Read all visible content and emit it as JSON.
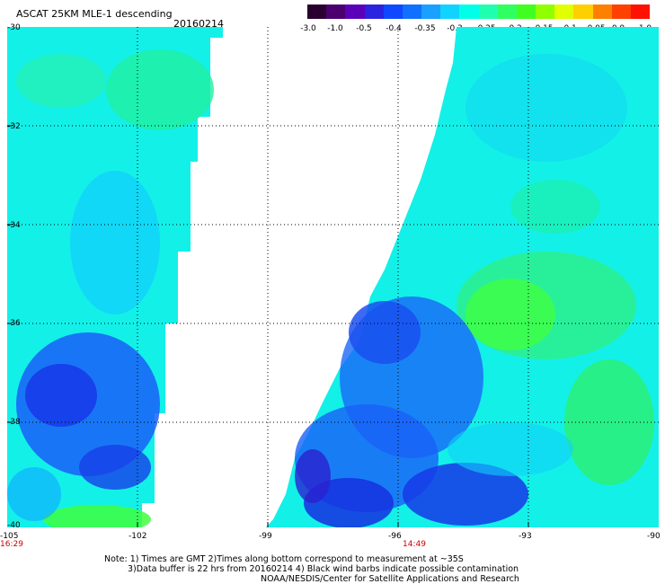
{
  "title": "ASCAT 25KM MLE-1 descending",
  "date": "20160214",
  "colorbar": {
    "labels": [
      "-3.0",
      "-1.0",
      "-0.5",
      "-0.4",
      "-0.35",
      "-0.3",
      "-0.25",
      "-0.2",
      "-0.15",
      "-0.1",
      "-0.05",
      "0.0",
      "1.0"
    ],
    "colors": [
      "#2a0030",
      "#4b0070",
      "#5a00b8",
      "#2a24e0",
      "#1048ff",
      "#1070ff",
      "#1aa0ff",
      "#10d4ff",
      "#00ffe8",
      "#20ffb0",
      "#30ff60",
      "#40ff20",
      "#90ff00",
      "#e0ff00",
      "#ffd000",
      "#ff8000",
      "#ff4000",
      "#ff1000"
    ]
  },
  "axes": {
    "lat_labels": [
      "-30",
      "-32",
      "-34",
      "-36",
      "-38",
      "-40"
    ],
    "lon_labels": [
      "-105",
      "-102",
      "-99",
      "-96",
      "-93",
      "-90"
    ]
  },
  "times": [
    "16:29",
    "14:49"
  ],
  "notes": [
    "Note: 1) Times are GMT 2)Times along bottom correspond to measurement at ~35S",
    "3)Data buffer is 22 hrs from 20160214 4) Black wind barbs indicate possible contamination",
    "NOAA/NESDIS/Center for Satellite Applications and Research"
  ]
}
